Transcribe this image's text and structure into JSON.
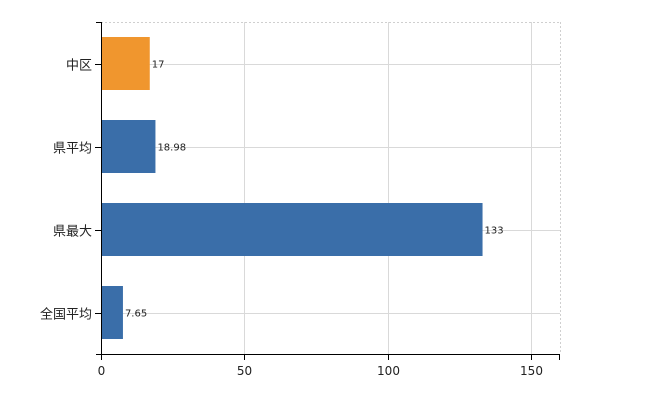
{
  "chart_data": {
    "type": "bar",
    "orientation": "horizontal",
    "title": "",
    "xlabel": "",
    "ylabel": "",
    "categories": [
      "中区",
      "県平均",
      "県最大",
      "全国平均"
    ],
    "values": [
      17,
      18.98,
      133,
      7.65
    ],
    "value_labels": [
      "17",
      "18.98",
      "133",
      "7.65"
    ],
    "bar_colors": [
      "#f0962e",
      "#3a6ea9",
      "#3a6ea9",
      "#3a6ea9"
    ],
    "xlim": [
      0,
      160
    ],
    "x_ticks": [
      0,
      50,
      100,
      150
    ],
    "x_tick_labels": [
      "0",
      "50",
      "100",
      "150"
    ],
    "grid": true,
    "legend": "none"
  }
}
